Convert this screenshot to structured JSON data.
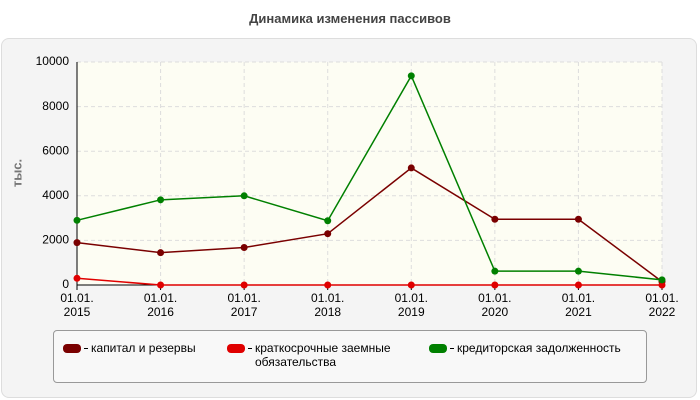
{
  "chart_data": {
    "type": "line",
    "title": "Динамика изменения пассивов",
    "y_label": "тыс.",
    "categories": [
      "01.01. 2015",
      "01.01. 2016",
      "01.01. 2017",
      "01.01. 2018",
      "01.01. 2019",
      "01.01. 2020",
      "01.01. 2021",
      "01.01. 2022"
    ],
    "series": [
      {
        "name": "капитал и резервы",
        "color": "#7a0000",
        "values": [
          1900,
          1450,
          1680,
          2300,
          5250,
          2950,
          2950,
          150
        ]
      },
      {
        "name": "краткосрочные заемные обязательства",
        "color": "#e00000",
        "values": [
          300,
          0,
          0,
          0,
          0,
          0,
          0,
          0
        ]
      },
      {
        "name": "кредиторская задолженность",
        "color": "#008000",
        "values": [
          2900,
          3820,
          4000,
          2880,
          9380,
          620,
          620,
          230
        ]
      }
    ],
    "ylim": [
      0,
      10000
    ],
    "yticks": [
      0,
      2000,
      4000,
      6000,
      8000,
      10000
    ],
    "grid": true,
    "legend": "bottom"
  }
}
